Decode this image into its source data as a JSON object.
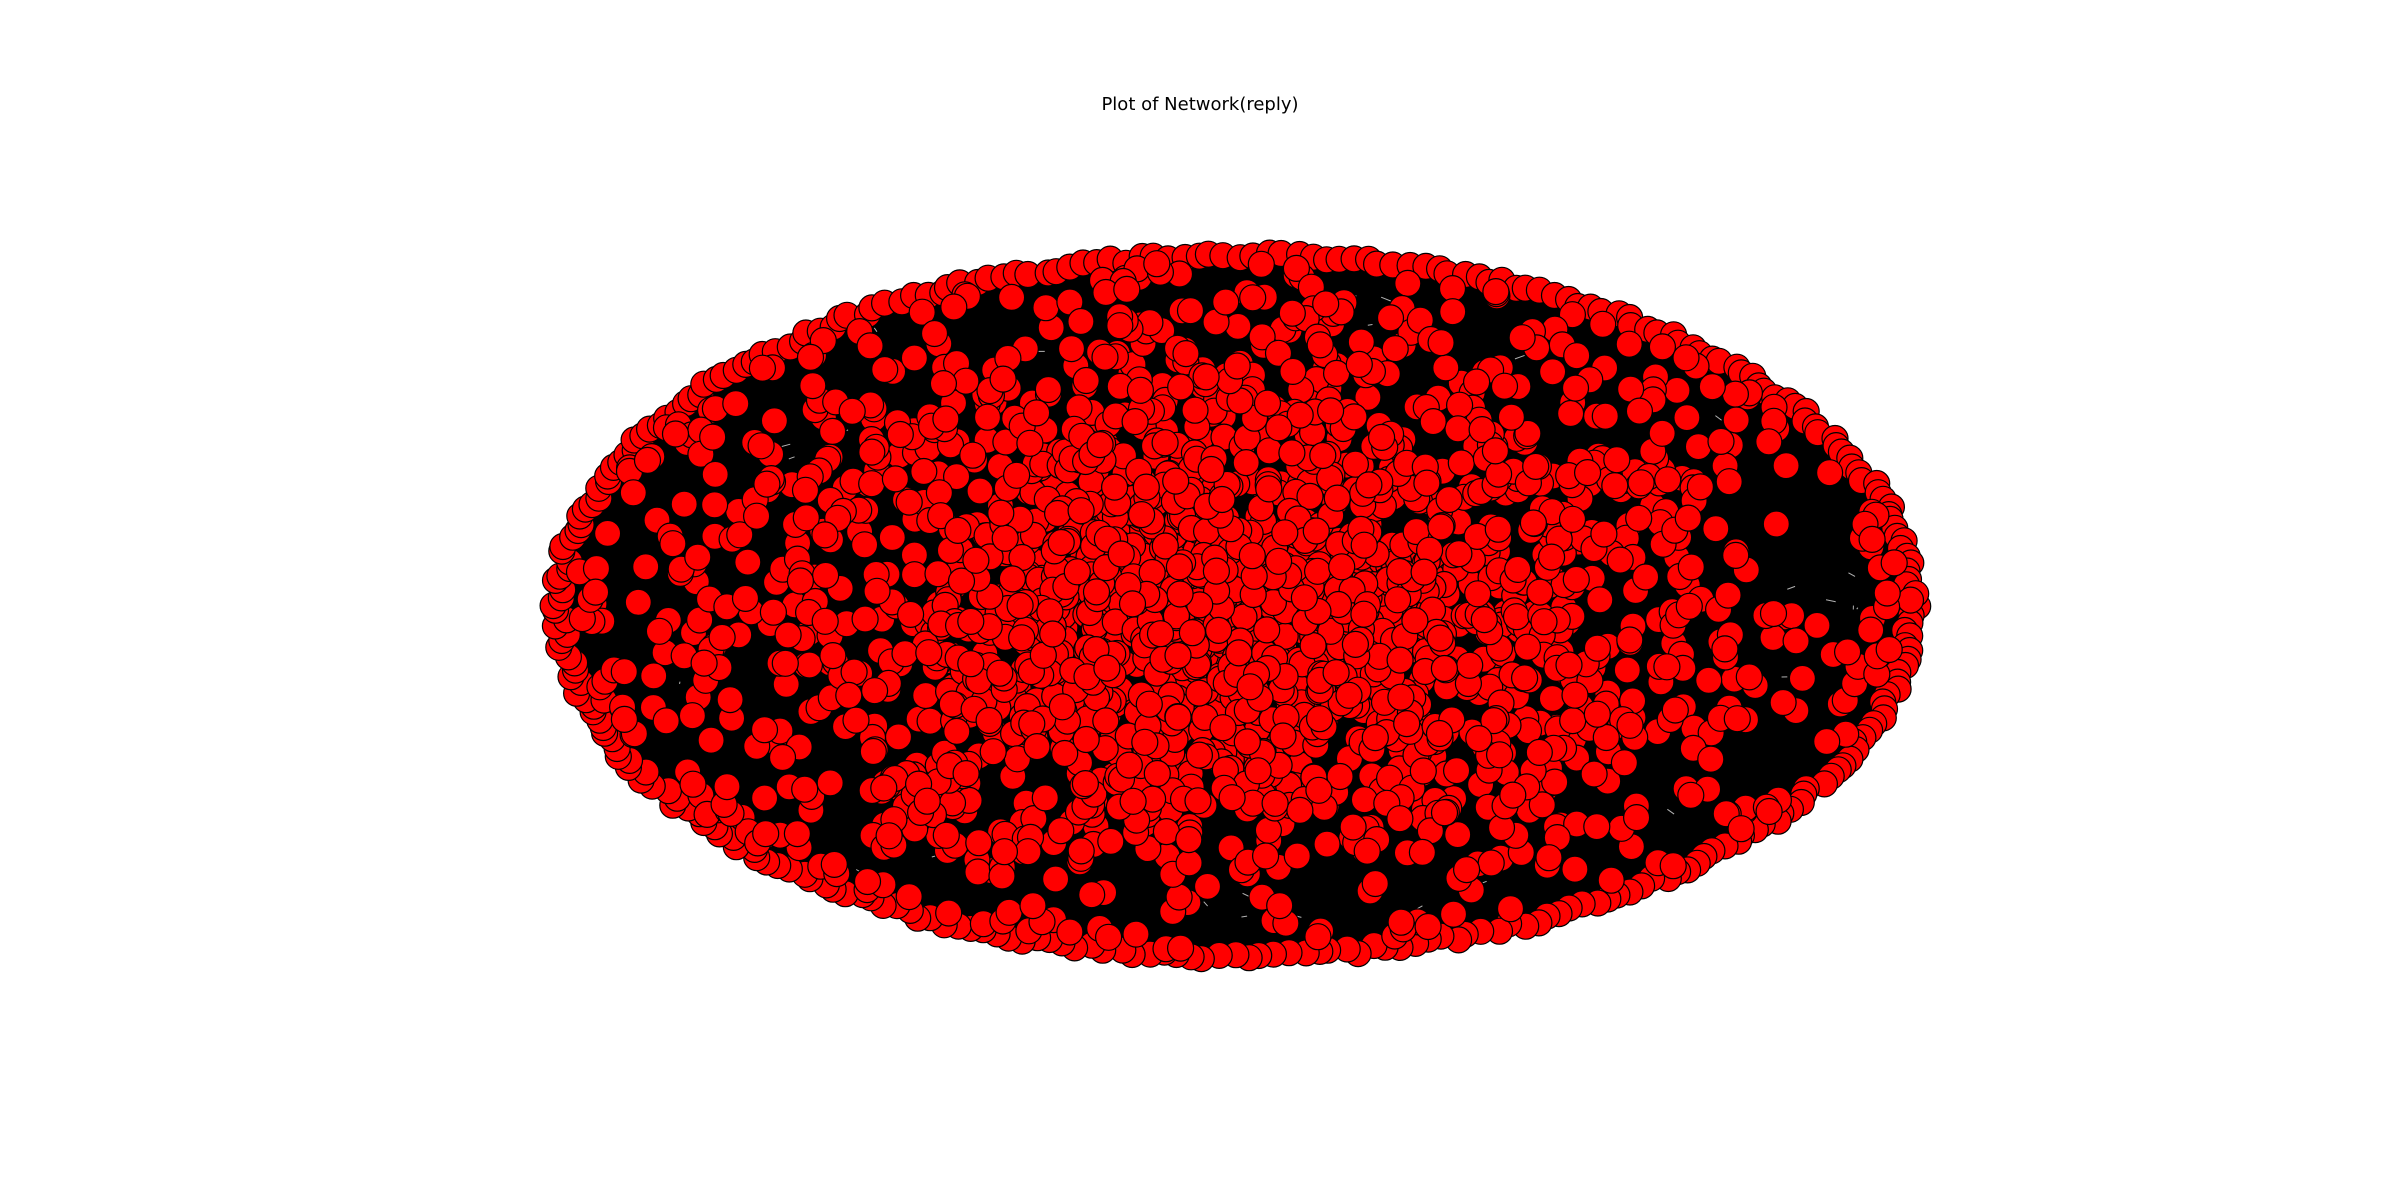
{
  "figure": {
    "title": "Plot of Network(reply)"
  },
  "style": {
    "node_fill": "#ff0000",
    "node_stroke": "#000000",
    "edge_color": "#000000",
    "background": "#ffffff"
  },
  "chart_data": {
    "type": "network",
    "title": "Plot of Network(reply)",
    "layout": "elliptical spring layout with dense ring of nodes on the perimeter",
    "nodes_visible": "approximately 2500",
    "axes": "off",
    "grid": false,
    "legend": "none"
  }
}
